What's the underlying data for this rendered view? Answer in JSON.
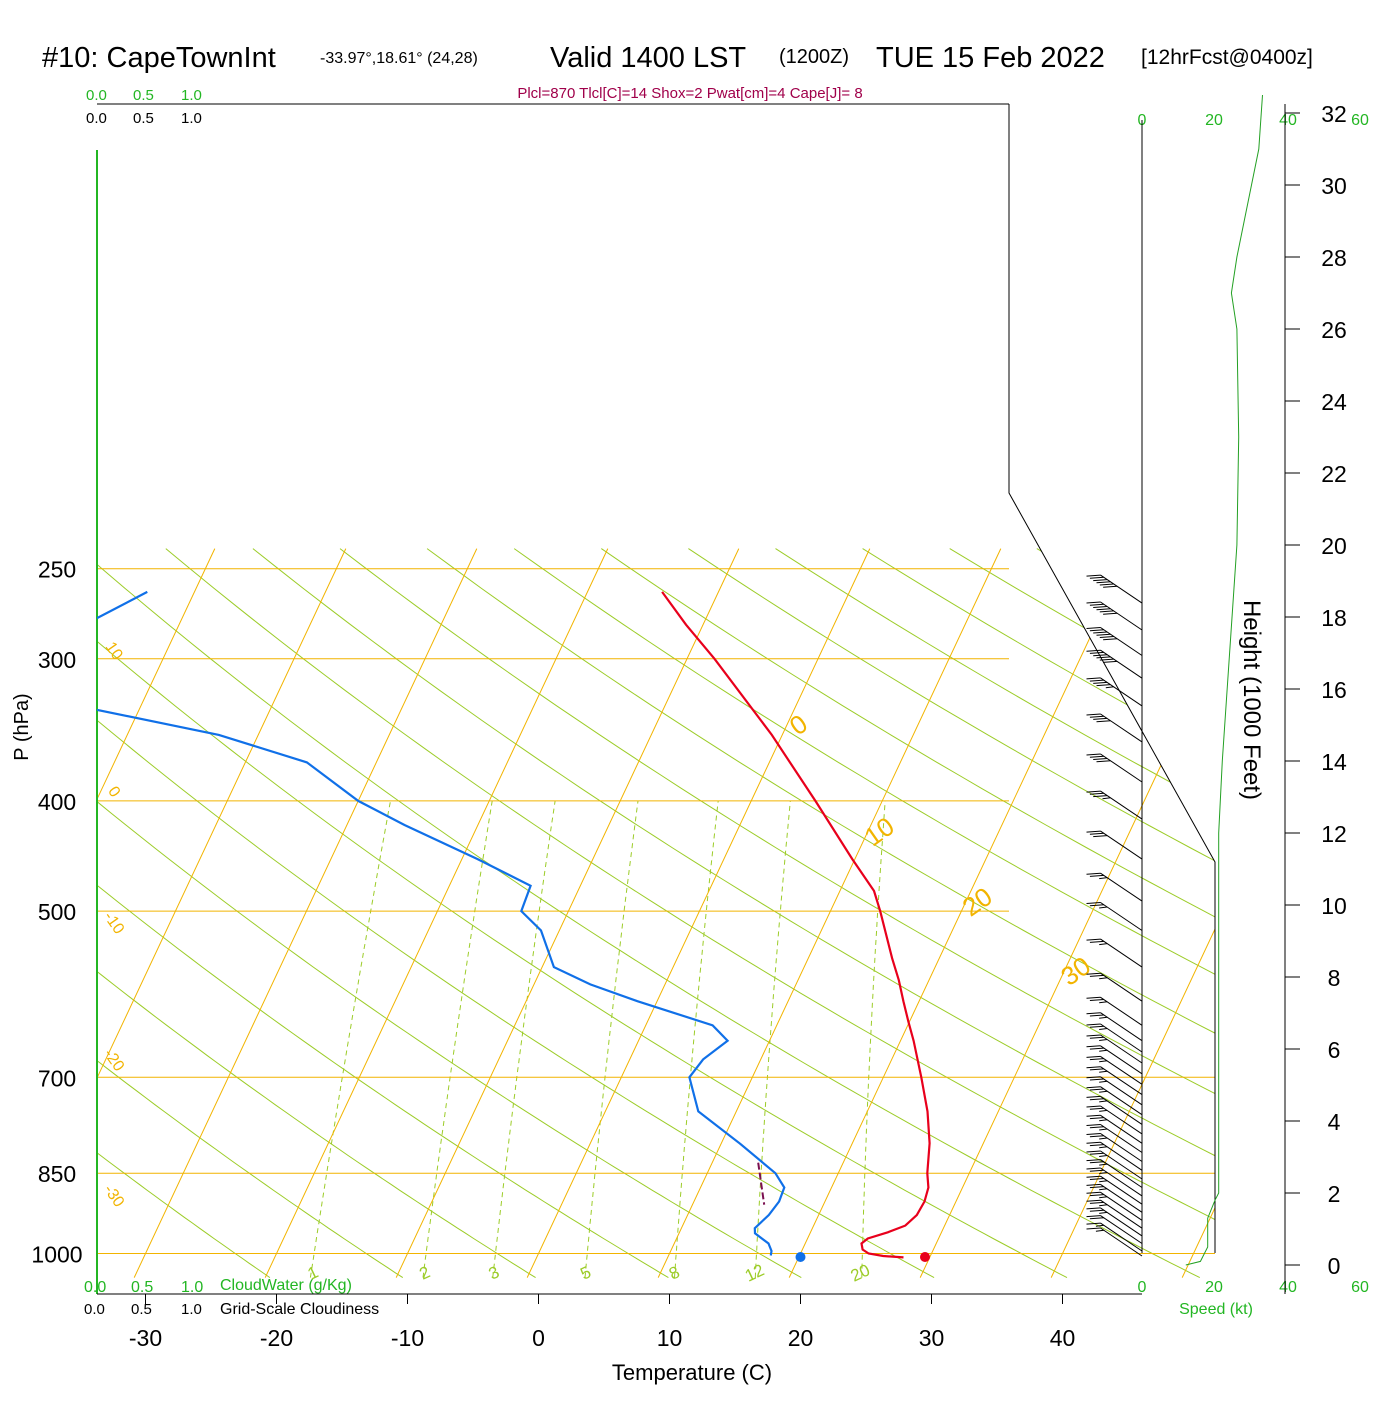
{
  "header": {
    "station": "#10: CapeTownInt",
    "coords": "-33.97°,18.61° (24,28)",
    "valid": "Valid 1400 LST",
    "utc": "(1200Z)",
    "date": "TUE 15 Feb 2022",
    "forecast": "[12hrFcst@0400z]",
    "indices": "Plcl=870 Tlcl[C]=14 Shox=2 Pwat[cm]=4 Cape[J]= 8"
  },
  "cloud_scale": {
    "top_green": [
      "0.0",
      "0.5",
      "1.0"
    ],
    "top_black": [
      "0.0",
      "0.5",
      "1.0"
    ],
    "bottom_green": [
      "0.0",
      "0.5",
      "1.0"
    ],
    "bottom_black": [
      "0.0",
      "0.5",
      "1.0"
    ],
    "cloudwater_label": "CloudWater (g/Kg)",
    "cloudiness_label": "Grid-Scale Cloudiness"
  },
  "speed_scale": {
    "top_black": "0",
    "top_green": [
      "20",
      "40",
      "60"
    ],
    "bottom_black": "0",
    "bottom_green": [
      "20",
      "40",
      "60"
    ],
    "label": "Speed (kt)"
  },
  "colors": {
    "isobar": "#f2b400",
    "isotherm": "#f2b400",
    "dry_adiabat": "#9ccc28",
    "mixing_ratio": "#9ccc28",
    "temperature": "#e8001c",
    "dewpoint": "#1070e8",
    "cloud_axis": "#23b623",
    "indices_text": "#a0004a",
    "speed_profile": "#23a023"
  },
  "chart_data": {
    "type": "line",
    "subtype": "skew-T log-p sounding",
    "xlabel": "Temperature (C)",
    "ylabel": "P (hPa)",
    "y2label": "Height (1000 Feet)",
    "x_ticks": [
      -30,
      -20,
      -10,
      0,
      10,
      20,
      30,
      40
    ],
    "pressure_ticks": [
      250,
      300,
      400,
      500,
      700,
      850,
      1000
    ],
    "height_ticks_kft": [
      0,
      2,
      4,
      6,
      8,
      10,
      12,
      14,
      16,
      18,
      20,
      22,
      24,
      26,
      28,
      30,
      32
    ],
    "isotherm_labels": [
      {
        "t": -30,
        "p": 895
      },
      {
        "t": -20,
        "p": 680
      },
      {
        "t": -10,
        "p": 515
      },
      {
        "t": 0,
        "p": 395
      },
      {
        "t": 10,
        "p": 297
      },
      {
        "t": 0,
        "p": 348
      },
      {
        "t": 10,
        "p": 432
      },
      {
        "t": 20,
        "p": 498
      },
      {
        "t": 30,
        "p": 573
      }
    ],
    "mixing_ratio_labels": [
      "1",
      "2",
      "3",
      "5",
      "8",
      "12",
      "20"
    ],
    "mixing_ratio_values": [
      1,
      2,
      3,
      5,
      8,
      12,
      20
    ],
    "temperature_profile": [
      {
        "p": 1008,
        "t": 28.0
      },
      {
        "p": 1005,
        "t": 26.4
      },
      {
        "p": 1000,
        "t": 25.2
      },
      {
        "p": 992,
        "t": 24.6
      },
      {
        "p": 980,
        "t": 24.3
      },
      {
        "p": 970,
        "t": 24.6
      },
      {
        "p": 958,
        "t": 25.9
      },
      {
        "p": 945,
        "t": 27.0
      },
      {
        "p": 925,
        "t": 27.5
      },
      {
        "p": 900,
        "t": 27.6
      },
      {
        "p": 875,
        "t": 27.4
      },
      {
        "p": 850,
        "t": 26.8
      },
      {
        "p": 800,
        "t": 25.9
      },
      {
        "p": 750,
        "t": 24.6
      },
      {
        "p": 700,
        "t": 22.9
      },
      {
        "p": 650,
        "t": 21.0
      },
      {
        "p": 625,
        "t": 19.9
      },
      {
        "p": 600,
        "t": 18.8
      },
      {
        "p": 575,
        "t": 17.7
      },
      {
        "p": 550,
        "t": 16.4
      },
      {
        "p": 500,
        "t": 13.8
      },
      {
        "p": 480,
        "t": 12.6
      },
      {
        "p": 450,
        "t": 9.8
      },
      {
        "p": 400,
        "t": 4.9
      },
      {
        "p": 350,
        "t": -0.8
      },
      {
        "p": 300,
        "t": -7.9
      },
      {
        "p": 280,
        "t": -11.3
      },
      {
        "p": 262,
        "t": -14.3
      }
    ],
    "dewpoint_profile": [
      {
        "p": 1004,
        "t": 17.8
      },
      {
        "p": 995,
        "t": 17.7
      },
      {
        "p": 980,
        "t": 17.2
      },
      {
        "p": 960,
        "t": 15.8
      },
      {
        "p": 950,
        "t": 15.6
      },
      {
        "p": 925,
        "t": 16.2
      },
      {
        "p": 900,
        "t": 16.5
      },
      {
        "p": 875,
        "t": 16.4
      },
      {
        "p": 850,
        "t": 15.2
      },
      {
        "p": 800,
        "t": 11.4
      },
      {
        "p": 750,
        "t": 7.1
      },
      {
        "p": 700,
        "t": 5.2
      },
      {
        "p": 675,
        "t": 5.6
      },
      {
        "p": 650,
        "t": 6.8
      },
      {
        "p": 630,
        "t": 5.1
      },
      {
        "p": 600,
        "t": -1.5
      },
      {
        "p": 580,
        "t": -5.7
      },
      {
        "p": 560,
        "t": -9.1
      },
      {
        "p": 520,
        "t": -11.4
      },
      {
        "p": 500,
        "t": -13.6
      },
      {
        "p": 475,
        "t": -13.8
      },
      {
        "p": 450,
        "t": -18.8
      },
      {
        "p": 420,
        "t": -25.6
      },
      {
        "p": 400,
        "t": -30.0
      },
      {
        "p": 370,
        "t": -35.3
      },
      {
        "p": 350,
        "t": -43.0
      },
      {
        "p": 320,
        "t": -61.0
      },
      {
        "p": 300,
        "t": -61.0
      },
      {
        "p": 262,
        "t": -53.6
      }
    ],
    "surface_markers": {
      "temperature": 29.5,
      "dewpoint": 20.0,
      "p": 1003
    },
    "lcl": {
      "p": 870,
      "t": 14
    },
    "speed_profile_kt": [
      {
        "h": 0.0,
        "v": 12
      },
      {
        "h": 0.1,
        "v": 16
      },
      {
        "h": 0.5,
        "v": 18
      },
      {
        "h": 1.3,
        "v": 18
      },
      {
        "h": 1.8,
        "v": 20
      },
      {
        "h": 2.0,
        "v": 21
      },
      {
        "h": 4.0,
        "v": 21
      },
      {
        "h": 8.0,
        "v": 21
      },
      {
        "h": 12.0,
        "v": 21
      },
      {
        "h": 14.0,
        "v": 22
      },
      {
        "h": 17.0,
        "v": 24
      },
      {
        "h": 20.0,
        "v": 26
      },
      {
        "h": 23.0,
        "v": 26.5
      },
      {
        "h": 26.0,
        "v": 26
      },
      {
        "h": 27.0,
        "v": 24.5
      },
      {
        "h": 28.0,
        "v": 26
      },
      {
        "h": 29.0,
        "v": 28
      },
      {
        "h": 30.0,
        "v": 30
      },
      {
        "h": 31.0,
        "v": 32
      },
      {
        "h": 32.5,
        "v": 33
      }
    ],
    "wind_barbs": [
      {
        "p": 268,
        "speed": 60
      },
      {
        "p": 283,
        "speed": 60
      },
      {
        "p": 298,
        "speed": 60
      },
      {
        "p": 312,
        "speed": 60
      },
      {
        "p": 330,
        "speed": 45
      },
      {
        "p": 355,
        "speed": 40
      },
      {
        "p": 385,
        "speed": 40
      },
      {
        "p": 415,
        "speed": 35
      },
      {
        "p": 450,
        "speed": 30
      },
      {
        "p": 490,
        "speed": 25
      },
      {
        "p": 520,
        "speed": 25
      },
      {
        "p": 560,
        "speed": 25
      },
      {
        "p": 600,
        "speed": 25
      },
      {
        "p": 630,
        "speed": 25
      },
      {
        "p": 650,
        "speed": 25
      },
      {
        "p": 665,
        "speed": 25
      },
      {
        "p": 680,
        "speed": 25
      },
      {
        "p": 695,
        "speed": 25
      },
      {
        "p": 710,
        "speed": 25
      },
      {
        "p": 725,
        "speed": 25
      },
      {
        "p": 740,
        "speed": 25
      },
      {
        "p": 755,
        "speed": 25
      },
      {
        "p": 770,
        "speed": 25
      },
      {
        "p": 785,
        "speed": 25
      },
      {
        "p": 800,
        "speed": 25
      },
      {
        "p": 815,
        "speed": 25
      },
      {
        "p": 830,
        "speed": 25
      },
      {
        "p": 845,
        "speed": 25
      },
      {
        "p": 860,
        "speed": 25
      },
      {
        "p": 875,
        "speed": 25
      },
      {
        "p": 890,
        "speed": 25
      },
      {
        "p": 905,
        "speed": 25
      },
      {
        "p": 920,
        "speed": 25
      },
      {
        "p": 935,
        "speed": 25
      },
      {
        "p": 950,
        "speed": 25
      },
      {
        "p": 965,
        "speed": 25
      },
      {
        "p": 980,
        "speed": 20
      },
      {
        "p": 995,
        "speed": 15
      },
      {
        "p": 1005,
        "speed": 15
      }
    ]
  }
}
